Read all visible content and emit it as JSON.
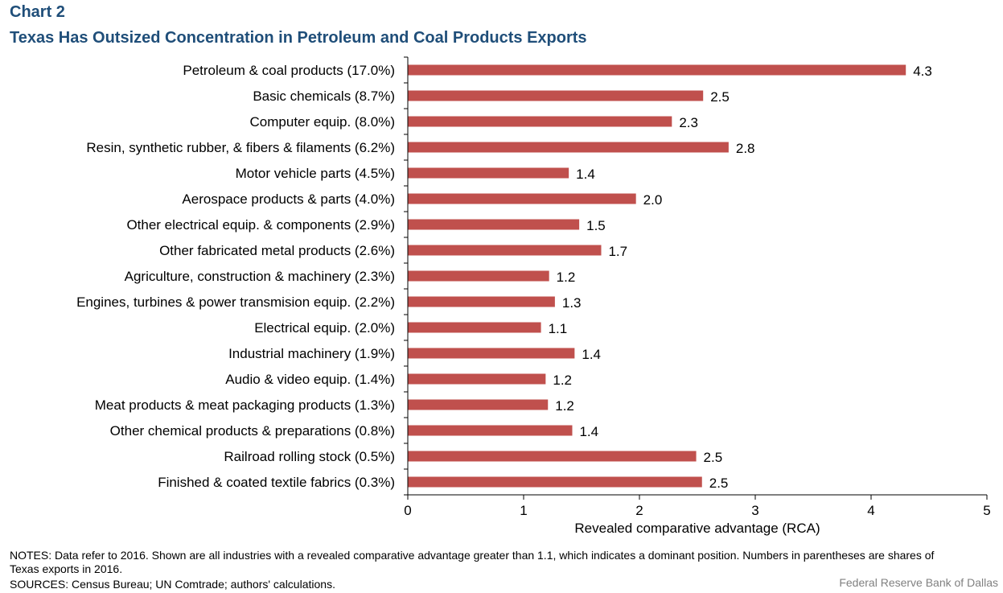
{
  "header": {
    "chart_label": "Chart 2",
    "title": "Texas Has Outsized Concentration in Petroleum and Coal Products Exports"
  },
  "chart_data": {
    "type": "bar",
    "orientation": "horizontal",
    "categories": [
      "Petroleum & coal products (17.0%)",
      "Basic chemicals (8.7%)",
      "Computer equip. (8.0%)",
      "Resin, synthetic rubber, & fibers & filaments (6.2%)",
      "Motor vehicle parts (4.5%)",
      "Aerospace products & parts (4.0%)",
      "Other electrical equip. & components (2.9%)",
      "Other fabricated metal products (2.6%)",
      "Agriculture, construction & machinery (2.3%)",
      "Engines, turbines & power transmision equip. (2.2%)",
      "Electrical equip. (2.0%)",
      "Industrial machinery (1.9%)",
      "Audio & video equip. (1.4%)",
      "Meat products & meat packaging products (1.3%)",
      "Other chemical products & preparations (0.8%)",
      "Railroad rolling stock (0.5%)",
      "Finished & coated textile fabrics (0.3%)"
    ],
    "values": [
      4.3,
      2.55,
      2.28,
      2.77,
      1.39,
      1.97,
      1.48,
      1.67,
      1.22,
      1.27,
      1.15,
      1.44,
      1.19,
      1.21,
      1.42,
      2.49,
      2.54
    ],
    "data_labels": [
      "4.3",
      "2.5",
      "2.3",
      "2.8",
      "1.4",
      "2.0",
      "1.5",
      "1.7",
      "1.2",
      "1.3",
      "1.1",
      "1.4",
      "1.2",
      "1.2",
      "1.4",
      "2.5",
      "2.5"
    ],
    "xlabel": "Revealed comparative advantage (RCA)",
    "xlim": [
      0,
      5
    ],
    "xticks": [
      "0",
      "1",
      "2",
      "3",
      "4",
      "5"
    ],
    "bar_color": "#c0504d",
    "grid": false,
    "legend": "none"
  },
  "footer": {
    "notes": "NOTES: Data refer to 2016. Shown are all industries with a revealed comparative advantage greater than 1.1, which indicates a dominant position. Numbers in parentheses are shares of Texas exports in 2016.",
    "sources": "SOURCES: Census Bureau; UN Comtrade; authors' calculations.",
    "credit": "Federal Reserve Bank of Dallas"
  }
}
